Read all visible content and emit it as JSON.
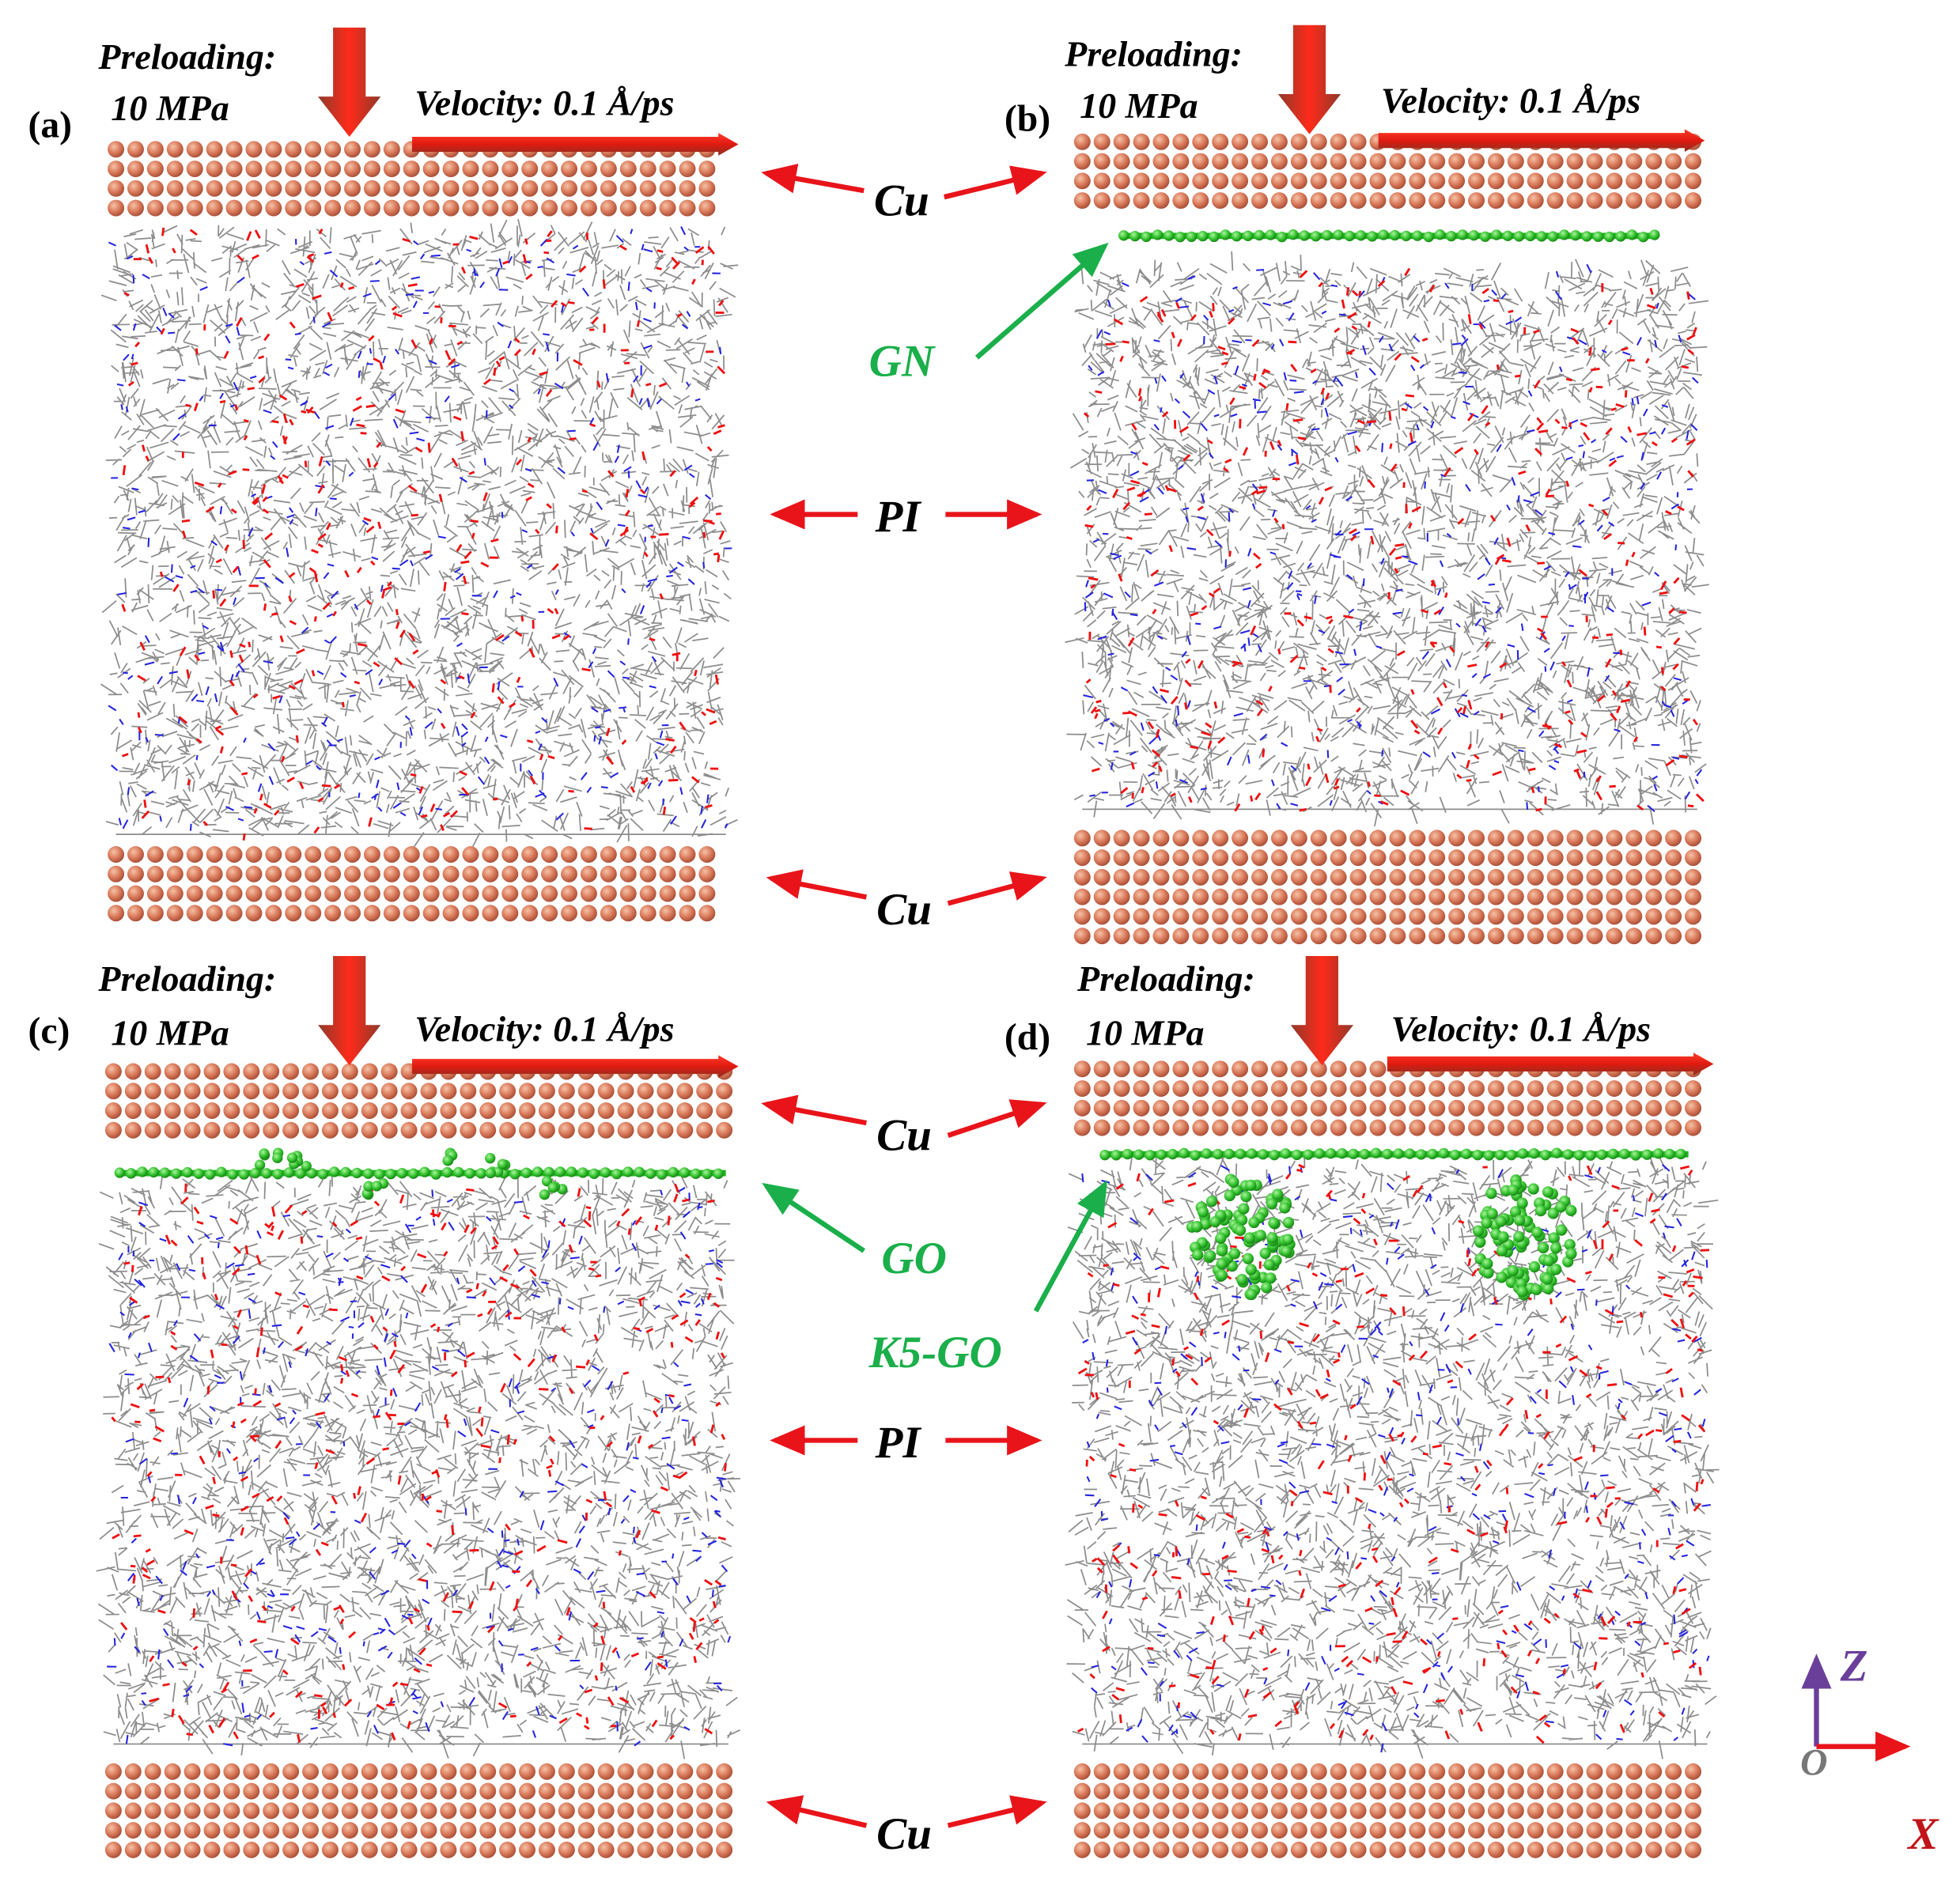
{
  "panels": [
    {
      "label": "(a)",
      "preloading": "Preloading:",
      "pressure": "10 MPa",
      "velocity": "Velocity: 0.1 Å/ps"
    },
    {
      "label": "(b)",
      "preloading": "Preloading:",
      "pressure": "10 MPa",
      "velocity": "Velocity: 0.1 Å/ps"
    },
    {
      "label": "(c)",
      "preloading": "Preloading:",
      "pressure": "10 MPa",
      "velocity": "Velocity: 0.1 Å/ps"
    },
    {
      "label": "(d)",
      "preloading": "Preloading:",
      "pressure": "10 MPa",
      "velocity": "Velocity: 0.1 Å/ps"
    }
  ],
  "annotations": [
    "Cu",
    "GN",
    "PI",
    "Cu",
    "Cu",
    "GO",
    "K5-GO",
    "PI",
    "Cu"
  ],
  "axes": {
    "z": "Z",
    "x": "X",
    "origin": "O"
  }
}
